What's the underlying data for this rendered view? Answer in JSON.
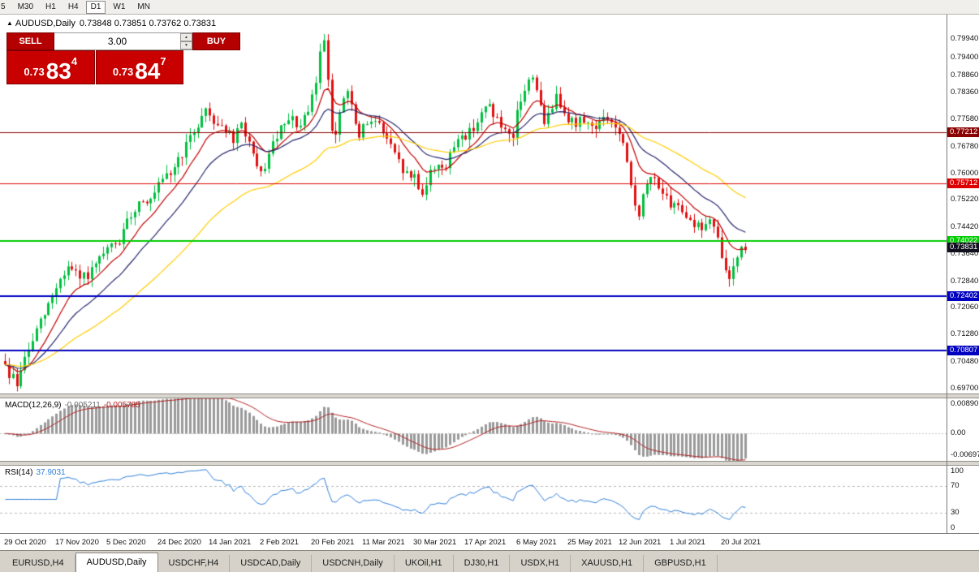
{
  "toolbar": {
    "items": [
      "5",
      "M30",
      "H1",
      "H4",
      "D1",
      "W1",
      "MN"
    ],
    "active": "D1"
  },
  "header": {
    "symbol": "AUDUSD,Daily",
    "ohlc": "0.73848 0.73851 0.73762 0.73831"
  },
  "icons": {
    "chart_window": "▲",
    "volume_up": "▲",
    "volume_down": "▼"
  },
  "trade_panel": {
    "sell_label": "SELL",
    "buy_label": "BUY",
    "volume": "3.00",
    "bid_prefix": "0.73",
    "bid_big": "83",
    "bid_sup": "4",
    "ask_prefix": "0.73",
    "ask_big": "84",
    "ask_sup": "7"
  },
  "indicators": {
    "macd": {
      "name": "MACD(12,26,9)",
      "value_main": "-0.005211",
      "value_signal": "-0.005785"
    },
    "rsi": {
      "name": "RSI(14)",
      "value": "37.9031"
    }
  },
  "tabs": {
    "items": [
      "EURUSD,H4",
      "AUDUSD,Daily",
      "USDCHF,H4",
      "USDCAD,Daily",
      "USDCNH,Daily",
      "UKOil,H1",
      "DJ30,H1",
      "USDX,H1",
      "XAUUSD,H1",
      "GBPUSD,H1"
    ],
    "active_index": 1
  },
  "chart_data": {
    "type": "candlestick",
    "title": "AUDUSD Daily",
    "bars": 189,
    "price_min": 0.6955,
    "price_max": 0.8065,
    "y_tick_labels": [
      "0.79940",
      "0.79400",
      "0.78860",
      "0.78360",
      "0.77580",
      "0.76780",
      "0.76000",
      "0.75220",
      "0.74420",
      "0.73640",
      "0.72840",
      "0.72060",
      "0.71280",
      "0.70480",
      "0.69700"
    ],
    "x_tick_labels": [
      "29 Oct 2020",
      "17 Nov 2020",
      "5 Dec 2020",
      "24 Dec 2020",
      "14 Jan 2021",
      "2 Feb 2021",
      "20 Feb 2021",
      "11 Mar 2021",
      "30 Mar 2021",
      "17 Apr 2021",
      "6 May 2021",
      "25 May 2021",
      "12 Jun 2021",
      "1 Jul 2021",
      "20 Jul 2021"
    ],
    "x_tick_indices": [
      0,
      13,
      26,
      39,
      52,
      65,
      78,
      91,
      104,
      117,
      130,
      143,
      156,
      169,
      182
    ],
    "candle_up_color": "#00bf3f",
    "candle_down_color": "#e01010",
    "noise_seed": 9,
    "close_noise": 0.0032,
    "wick_noise": 0.0026,
    "close_anchors": [
      [
        0,
        0.705
      ],
      [
        1,
        0.699
      ],
      [
        2,
        0.702
      ],
      [
        3,
        0.6972
      ],
      [
        4,
        0.703
      ],
      [
        6,
        0.708
      ],
      [
        8,
        0.714
      ],
      [
        10,
        0.7185
      ],
      [
        13,
        0.727
      ],
      [
        16,
        0.7325
      ],
      [
        19,
        0.729
      ],
      [
        22,
        0.731
      ],
      [
        26,
        0.7375
      ],
      [
        29,
        0.74
      ],
      [
        32,
        0.748
      ],
      [
        35,
        0.753
      ],
      [
        37,
        0.7515
      ],
      [
        39,
        0.756
      ],
      [
        42,
        0.76
      ],
      [
        45,
        0.766
      ],
      [
        47,
        0.77
      ],
      [
        49,
        0.7745
      ],
      [
        51,
        0.779
      ],
      [
        53,
        0.7755
      ],
      [
        56,
        0.773
      ],
      [
        58,
        0.769
      ],
      [
        60,
        0.7745
      ],
      [
        62,
        0.769
      ],
      [
        64,
        0.7605
      ],
      [
        65,
        0.7598
      ],
      [
        67,
        0.765
      ],
      [
        69,
        0.771
      ],
      [
        71,
        0.774
      ],
      [
        73,
        0.7755
      ],
      [
        75,
        0.7735
      ],
      [
        77,
        0.7775
      ],
      [
        79,
        0.787
      ],
      [
        80,
        0.795
      ],
      [
        81,
        0.8
      ],
      [
        82,
        0.788
      ],
      [
        83,
        0.774
      ],
      [
        84,
        0.771
      ],
      [
        85,
        0.7765
      ],
      [
        86,
        0.782
      ],
      [
        87,
        0.784
      ],
      [
        88,
        0.779
      ],
      [
        90,
        0.77
      ],
      [
        91,
        0.773
      ],
      [
        93,
        0.7765
      ],
      [
        95,
        0.774
      ],
      [
        97,
        0.77
      ],
      [
        99,
        0.765
      ],
      [
        101,
        0.761
      ],
      [
        103,
        0.7585
      ],
      [
        104,
        0.7598
      ],
      [
        105,
        0.756
      ],
      [
        106,
        0.7545
      ],
      [
        108,
        0.76
      ],
      [
        110,
        0.7632
      ],
      [
        112,
        0.7615
      ],
      [
        114,
        0.768
      ],
      [
        116,
        0.7722
      ],
      [
        117,
        0.7705
      ],
      [
        119,
        0.7738
      ],
      [
        121,
        0.7772
      ],
      [
        123,
        0.78
      ],
      [
        125,
        0.7755
      ],
      [
        127,
        0.7715
      ],
      [
        129,
        0.769
      ],
      [
        130,
        0.778
      ],
      [
        132,
        0.7845
      ],
      [
        134,
        0.789
      ],
      [
        135,
        0.785
      ],
      [
        136,
        0.779
      ],
      [
        137,
        0.7735
      ],
      [
        138,
        0.778
      ],
      [
        140,
        0.782
      ],
      [
        142,
        0.779
      ],
      [
        143,
        0.7765
      ],
      [
        145,
        0.7742
      ],
      [
        147,
        0.7762
      ],
      [
        149,
        0.7735
      ],
      [
        151,
        0.7748
      ],
      [
        153,
        0.7762
      ],
      [
        155,
        0.7735
      ],
      [
        156,
        0.771
      ],
      [
        157,
        0.768
      ],
      [
        158,
        0.762
      ],
      [
        159,
        0.756
      ],
      [
        160,
        0.751
      ],
      [
        161,
        0.7485
      ],
      [
        162,
        0.753
      ],
      [
        164,
        0.759
      ],
      [
        166,
        0.757
      ],
      [
        168,
        0.752
      ],
      [
        169,
        0.749
      ],
      [
        171,
        0.7512
      ],
      [
        173,
        0.7482
      ],
      [
        175,
        0.7452
      ],
      [
        177,
        0.744
      ],
      [
        179,
        0.7462
      ],
      [
        180,
        0.7432
      ],
      [
        181,
        0.74
      ],
      [
        182,
        0.736
      ],
      [
        183,
        0.7308
      ],
      [
        184,
        0.729
      ],
      [
        185,
        0.734
      ],
      [
        186,
        0.7362
      ],
      [
        187,
        0.7375
      ],
      [
        188,
        0.7383
      ]
    ],
    "wick_overrides": [
      [
        3,
        "low",
        0.6966
      ],
      [
        81,
        "high",
        0.8008
      ],
      [
        184,
        "low",
        0.7268
      ]
    ],
    "moving_averages": [
      {
        "period": 10,
        "color": "#c00000"
      },
      {
        "period": 21,
        "color": "#26266e"
      },
      {
        "period": 50,
        "color": "#ffcc00"
      }
    ],
    "horizontal_lines": [
      {
        "price": 0.77212,
        "label": "0.77212",
        "color": "#8b0000",
        "width": 1
      },
      {
        "price": 0.75712,
        "label": "0.75712",
        "color": "#dd0000",
        "width": 1
      },
      {
        "price": 0.74022,
        "label": "0.74022",
        "color": "#00cc00",
        "width": 2
      },
      {
        "price": 0.72402,
        "label": "0.72402",
        "color": "#0000c0",
        "width": 2
      },
      {
        "price": 0.70807,
        "label": "0.70807",
        "color": "#0000c0",
        "width": 2
      }
    ],
    "current_price": {
      "label": "0.73831",
      "price": 0.73831,
      "bg": "#10101e"
    },
    "macd_panel": {
      "fast": 12,
      "slow": 26,
      "signal": 9,
      "range_max": 0.0089,
      "range_min": -0.00697,
      "histogram_color": "#9a9a9a",
      "signal_color": "#b22222",
      "axis_labels": [
        "0.00890",
        "0.00",
        "-0.00697"
      ]
    },
    "rsi_panel": {
      "period": 14,
      "line_color": "#2f7ed8",
      "levels": [
        70,
        30
      ],
      "axis_labels": [
        "100",
        "70",
        "30",
        "0"
      ]
    }
  }
}
